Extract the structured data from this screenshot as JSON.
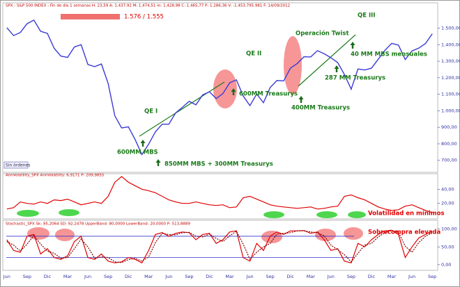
{
  "chart_data": [
    {
      "type": "line",
      "title": "SPX - S&P 500 INDEX - Fin de día 1 semanas H: 23,59 A: 1.437,92 M: 1.474,51 m: 1.428,98 C: 1.465,77 P: 1.286,36 V: -1.453.795.981 F: 14/09/2012",
      "categories": [
        "Jun",
        null,
        null,
        "Sep",
        null,
        null,
        "Dic",
        null,
        null,
        "Mar",
        null,
        null,
        "Jun",
        null,
        null,
        "Sep",
        null,
        null,
        "Dic",
        null,
        null,
        "Mar",
        null,
        null,
        "Jun",
        null,
        null,
        "Sep",
        null,
        null,
        "Dic",
        null,
        null,
        "Mar",
        null,
        null,
        "Jun",
        null,
        null,
        "Sep",
        null,
        null,
        "Dic",
        null,
        null,
        "Mar",
        null,
        null,
        "Jun",
        null,
        null,
        "Sep",
        null,
        null,
        "Dic",
        null,
        null,
        "Mar",
        null,
        null,
        "Jun",
        null,
        null,
        "Sep"
      ],
      "series": [
        {
          "name": "SPX",
          "color": "#3a3ad8",
          "values": [
            1503,
            1455,
            1474,
            1527,
            1549,
            1481,
            1468,
            1378,
            1331,
            1323,
            1386,
            1400,
            1280,
            1267,
            1283,
            1165,
            969,
            896,
            903,
            826,
            735,
            798,
            873,
            919,
            919,
            987,
            1021,
            1057,
            1036,
            1096,
            1115,
            1074,
            1104,
            1169,
            1187,
            1089,
            1031,
            1102,
            1049,
            1141,
            1183,
            1181,
            1258,
            1286,
            1327,
            1326,
            1364,
            1345,
            1321,
            1292,
            1219,
            1131,
            1253,
            1247,
            1258,
            1312,
            1366,
            1408,
            1398,
            1310,
            1362,
            1379,
            1407,
            1466
          ]
        }
      ],
      "ylim": [
        640,
        1620
      ],
      "yticks": [
        {
          "value": 700,
          "label": "700,00"
        },
        {
          "value": 800,
          "label": "800,00"
        },
        {
          "value": 900,
          "label": "900,00"
        },
        {
          "value": 1000,
          "label": "1.000,00"
        },
        {
          "value": 1100,
          "label": "1.100,00"
        },
        {
          "value": 1200,
          "label": "1.200,00"
        },
        {
          "value": 1300,
          "label": "1.300,00"
        },
        {
          "value": 1400,
          "label": "1.400,00"
        },
        {
          "value": 1500,
          "label": "1.500,00"
        }
      ],
      "annotations": [
        "1.576 / 1.555",
        "QE I",
        "600MM MBS",
        "850MM MBS + 300MM Treasurys",
        "QE II",
        "600MM Treasurys",
        "Operación Twist",
        "400MM Treasurys",
        "QE III",
        "40 MM MBS mensuales",
        "287 MM Treasurys"
      ],
      "status": "Sin órdenes"
    },
    {
      "type": "line",
      "title": "AnnVolatility_SPX AnnVolatility: 6,9171 P: 209,9855",
      "series": [
        {
          "name": "AnnVolatility",
          "color": "#e00000",
          "values": [
            12,
            14,
            22,
            20,
            19,
            22,
            20,
            25,
            24,
            26,
            22,
            18,
            20,
            22,
            20,
            30,
            50,
            58,
            50,
            45,
            40,
            38,
            35,
            30,
            25,
            22,
            20,
            20,
            22,
            20,
            18,
            17,
            18,
            14,
            15,
            28,
            30,
            26,
            22,
            18,
            16,
            15,
            14,
            13,
            14,
            15,
            12,
            13,
            15,
            16,
            30,
            32,
            28,
            25,
            20,
            15,
            12,
            10,
            11,
            16,
            18,
            14,
            10,
            7
          ]
        }
      ],
      "ylim": [
        0,
        60
      ],
      "yticks": [
        {
          "value": 20,
          "label": "20,00"
        },
        {
          "value": 40,
          "label": "40,00"
        }
      ],
      "annotations": [
        "Volatilidad en mínimos"
      ]
    },
    {
      "type": "line",
      "title": "Stochastic_SPX Sk: 95,2064 SD: 92,2478 UpperBand: 80,0000 LowerBand: 20,0000 P: 513,8889",
      "series": [
        {
          "name": "Sk",
          "color": "#e00000",
          "values": [
            70,
            40,
            35,
            80,
            85,
            30,
            45,
            20,
            15,
            25,
            65,
            80,
            20,
            15,
            30,
            10,
            5,
            8,
            20,
            15,
            5,
            40,
            85,
            90,
            80,
            88,
            92,
            90,
            70,
            85,
            88,
            60,
            70,
            92,
            95,
            20,
            10,
            60,
            40,
            80,
            92,
            85,
            95,
            95,
            96,
            88,
            92,
            70,
            40,
            45,
            10,
            5,
            60,
            50,
            70,
            85,
            95,
            97,
            85,
            20,
            50,
            75,
            85,
            95
          ]
        },
        {
          "name": "SD",
          "color": "#800000",
          "values": [
            65,
            55,
            38,
            58,
            82,
            58,
            38,
            32,
            18,
            20,
            45,
            72,
            50,
            18,
            22,
            20,
            8,
            6,
            14,
            18,
            10,
            22,
            62,
            88,
            85,
            84,
            90,
            91,
            80,
            78,
            86,
            74,
            65,
            81,
            94,
            58,
            15,
            35,
            50,
            60,
            86,
            88,
            90,
            95,
            95,
            92,
            90,
            81,
            55,
            42,
            28,
            8,
            32,
            55,
            60,
            78,
            90,
            96,
            91,
            52,
            35,
            62,
            80,
            90
          ]
        }
      ],
      "bands": [
        80,
        20
      ],
      "ylim": [
        -10,
        115
      ],
      "yticks": [
        {
          "value": 0,
          "label": "0,00"
        },
        {
          "value": 50,
          "label": "50,00"
        },
        {
          "value": 100,
          "label": "100,00"
        }
      ],
      "annotations": [
        "Sobrecompra elevada"
      ]
    }
  ]
}
